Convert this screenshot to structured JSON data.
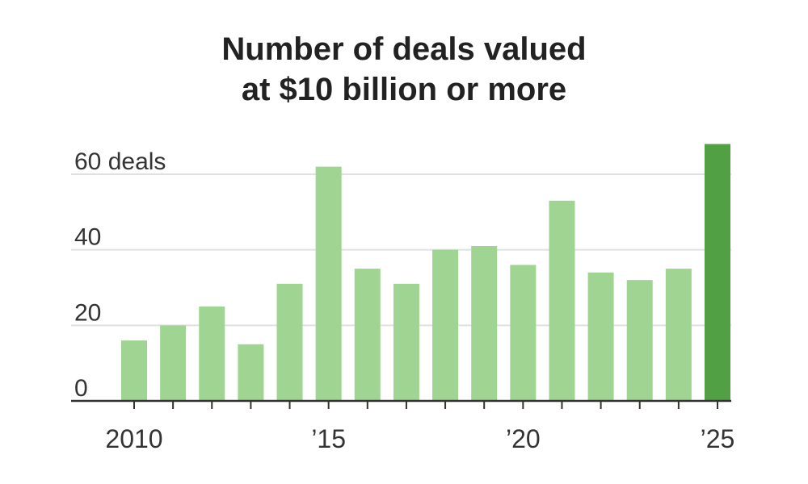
{
  "chart_data": {
    "type": "bar",
    "title_line1": "Number of deals valued",
    "title_line2": "at $10 billion or more",
    "xlabel": "",
    "ylabel": "",
    "categories": [
      2010,
      2011,
      2012,
      2013,
      2014,
      2015,
      2016,
      2017,
      2018,
      2019,
      2020,
      2021,
      2022,
      2023,
      2024,
      2025
    ],
    "values": [
      16,
      20,
      25,
      15,
      31,
      62,
      35,
      31,
      40,
      41,
      36,
      53,
      34,
      32,
      35,
      68
    ],
    "ylim": [
      0,
      68
    ],
    "y_ticks": [
      {
        "v": 0,
        "label": "0"
      },
      {
        "v": 20,
        "label": "20"
      },
      {
        "v": 40,
        "label": "40"
      },
      {
        "v": 60,
        "label": "60 deals"
      }
    ],
    "x_tick_labels": [
      {
        "year": 2010,
        "label": "2010"
      },
      {
        "year": 2015,
        "label": "’15"
      },
      {
        "year": 2020,
        "label": "’20"
      },
      {
        "year": 2025,
        "label": "’25"
      }
    ],
    "grid": true,
    "colors": {
      "bar": "#a0d492",
      "highlight": "#52a044",
      "grid": "#e0e0e0",
      "axis": "#333333"
    }
  }
}
